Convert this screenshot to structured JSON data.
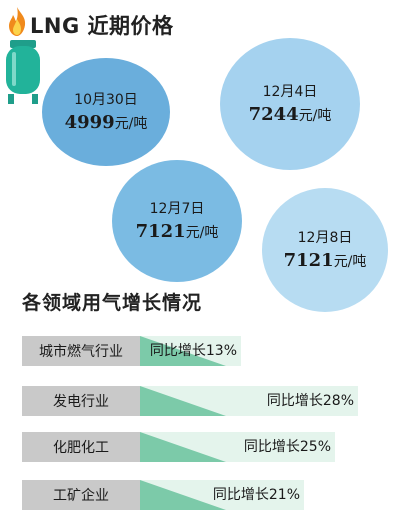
{
  "header": {
    "icon_flame": "flame-icon",
    "icon_tank": "lng-tank-icon",
    "title": "LNG 近期价格"
  },
  "price_bubbles": [
    {
      "date": "10月30日",
      "price": "4999",
      "unit": "元/吨",
      "color": "#6aaedc"
    },
    {
      "date": "12月4日",
      "price": "7244",
      "unit": "元/吨",
      "color": "#a5d2ef"
    },
    {
      "date": "12月7日",
      "price": "7121",
      "unit": "元/吨",
      "color": "#7bbbe3"
    },
    {
      "date": "12月8日",
      "price": "7121",
      "unit": "元/吨",
      "color": "#b7dcf2"
    }
  ],
  "growth_section": {
    "title": "各领域用气增长情况",
    "rows": [
      {
        "label": "城市燃气行业",
        "text": "同比增长13%"
      },
      {
        "label": "发电行业",
        "text": "同比增长28%"
      },
      {
        "label": "化肥化工",
        "text": "同比增长25%"
      },
      {
        "label": "工矿企业",
        "text": "同比增长21%"
      }
    ]
  },
  "colors": {
    "bar_fill": "#e4f4ec",
    "bar_triangle": "#7ccaa9",
    "label_bg": "#c9c9c9"
  },
  "chart_data": {
    "type": "bar",
    "title": "各领域用气增长情况",
    "categories": [
      "城市燃气行业",
      "发电行业",
      "化肥化工",
      "工矿企业"
    ],
    "values": [
      13,
      28,
      25,
      21
    ],
    "unit": "%"
  }
}
